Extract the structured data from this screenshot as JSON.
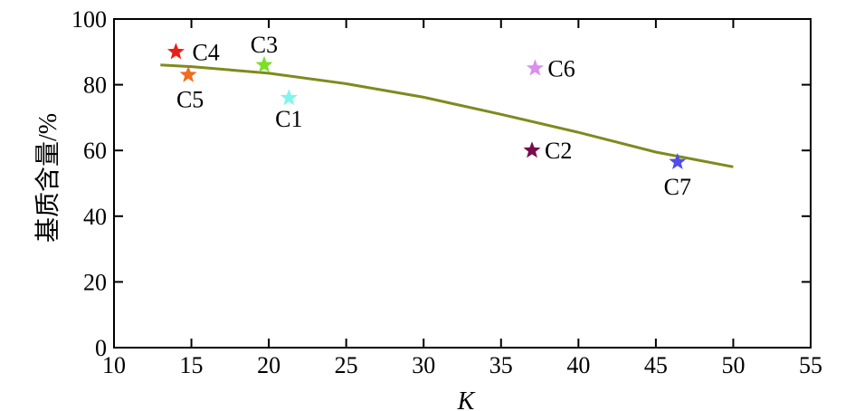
{
  "chart_data": {
    "type": "scatter",
    "xlabel": "K",
    "ylabel": "基质含量/%",
    "xlim": [
      10,
      55
    ],
    "ylim": [
      0,
      100
    ],
    "xticks": [
      10,
      15,
      20,
      25,
      30,
      35,
      40,
      45,
      50,
      55
    ],
    "yticks": [
      0,
      20,
      40,
      60,
      80,
      100
    ],
    "grid": false,
    "points": [
      {
        "label": "C1",
        "x": 21.3,
        "y": 76,
        "color": "#7FF5EE"
      },
      {
        "label": "C2",
        "x": 37.0,
        "y": 60,
        "color": "#7A0B4E"
      },
      {
        "label": "C3",
        "x": 19.7,
        "y": 86,
        "color": "#7CE026"
      },
      {
        "label": "C4",
        "x": 14.0,
        "y": 90,
        "color": "#E81E17"
      },
      {
        "label": "C5",
        "x": 14.8,
        "y": 83,
        "color": "#F06C1E"
      },
      {
        "label": "C6",
        "x": 37.2,
        "y": 85,
        "color": "#D98EF0"
      },
      {
        "label": "C7",
        "x": 46.4,
        "y": 56.5,
        "color": "#4F4EE8"
      }
    ],
    "fit_curve": {
      "color": "#7F8A1E",
      "x": [
        13,
        15,
        20,
        25,
        30,
        35,
        40,
        45,
        50
      ],
      "y": [
        86,
        85.5,
        83.5,
        80.3,
        76.2,
        71,
        65.5,
        59.5,
        55
      ]
    }
  }
}
